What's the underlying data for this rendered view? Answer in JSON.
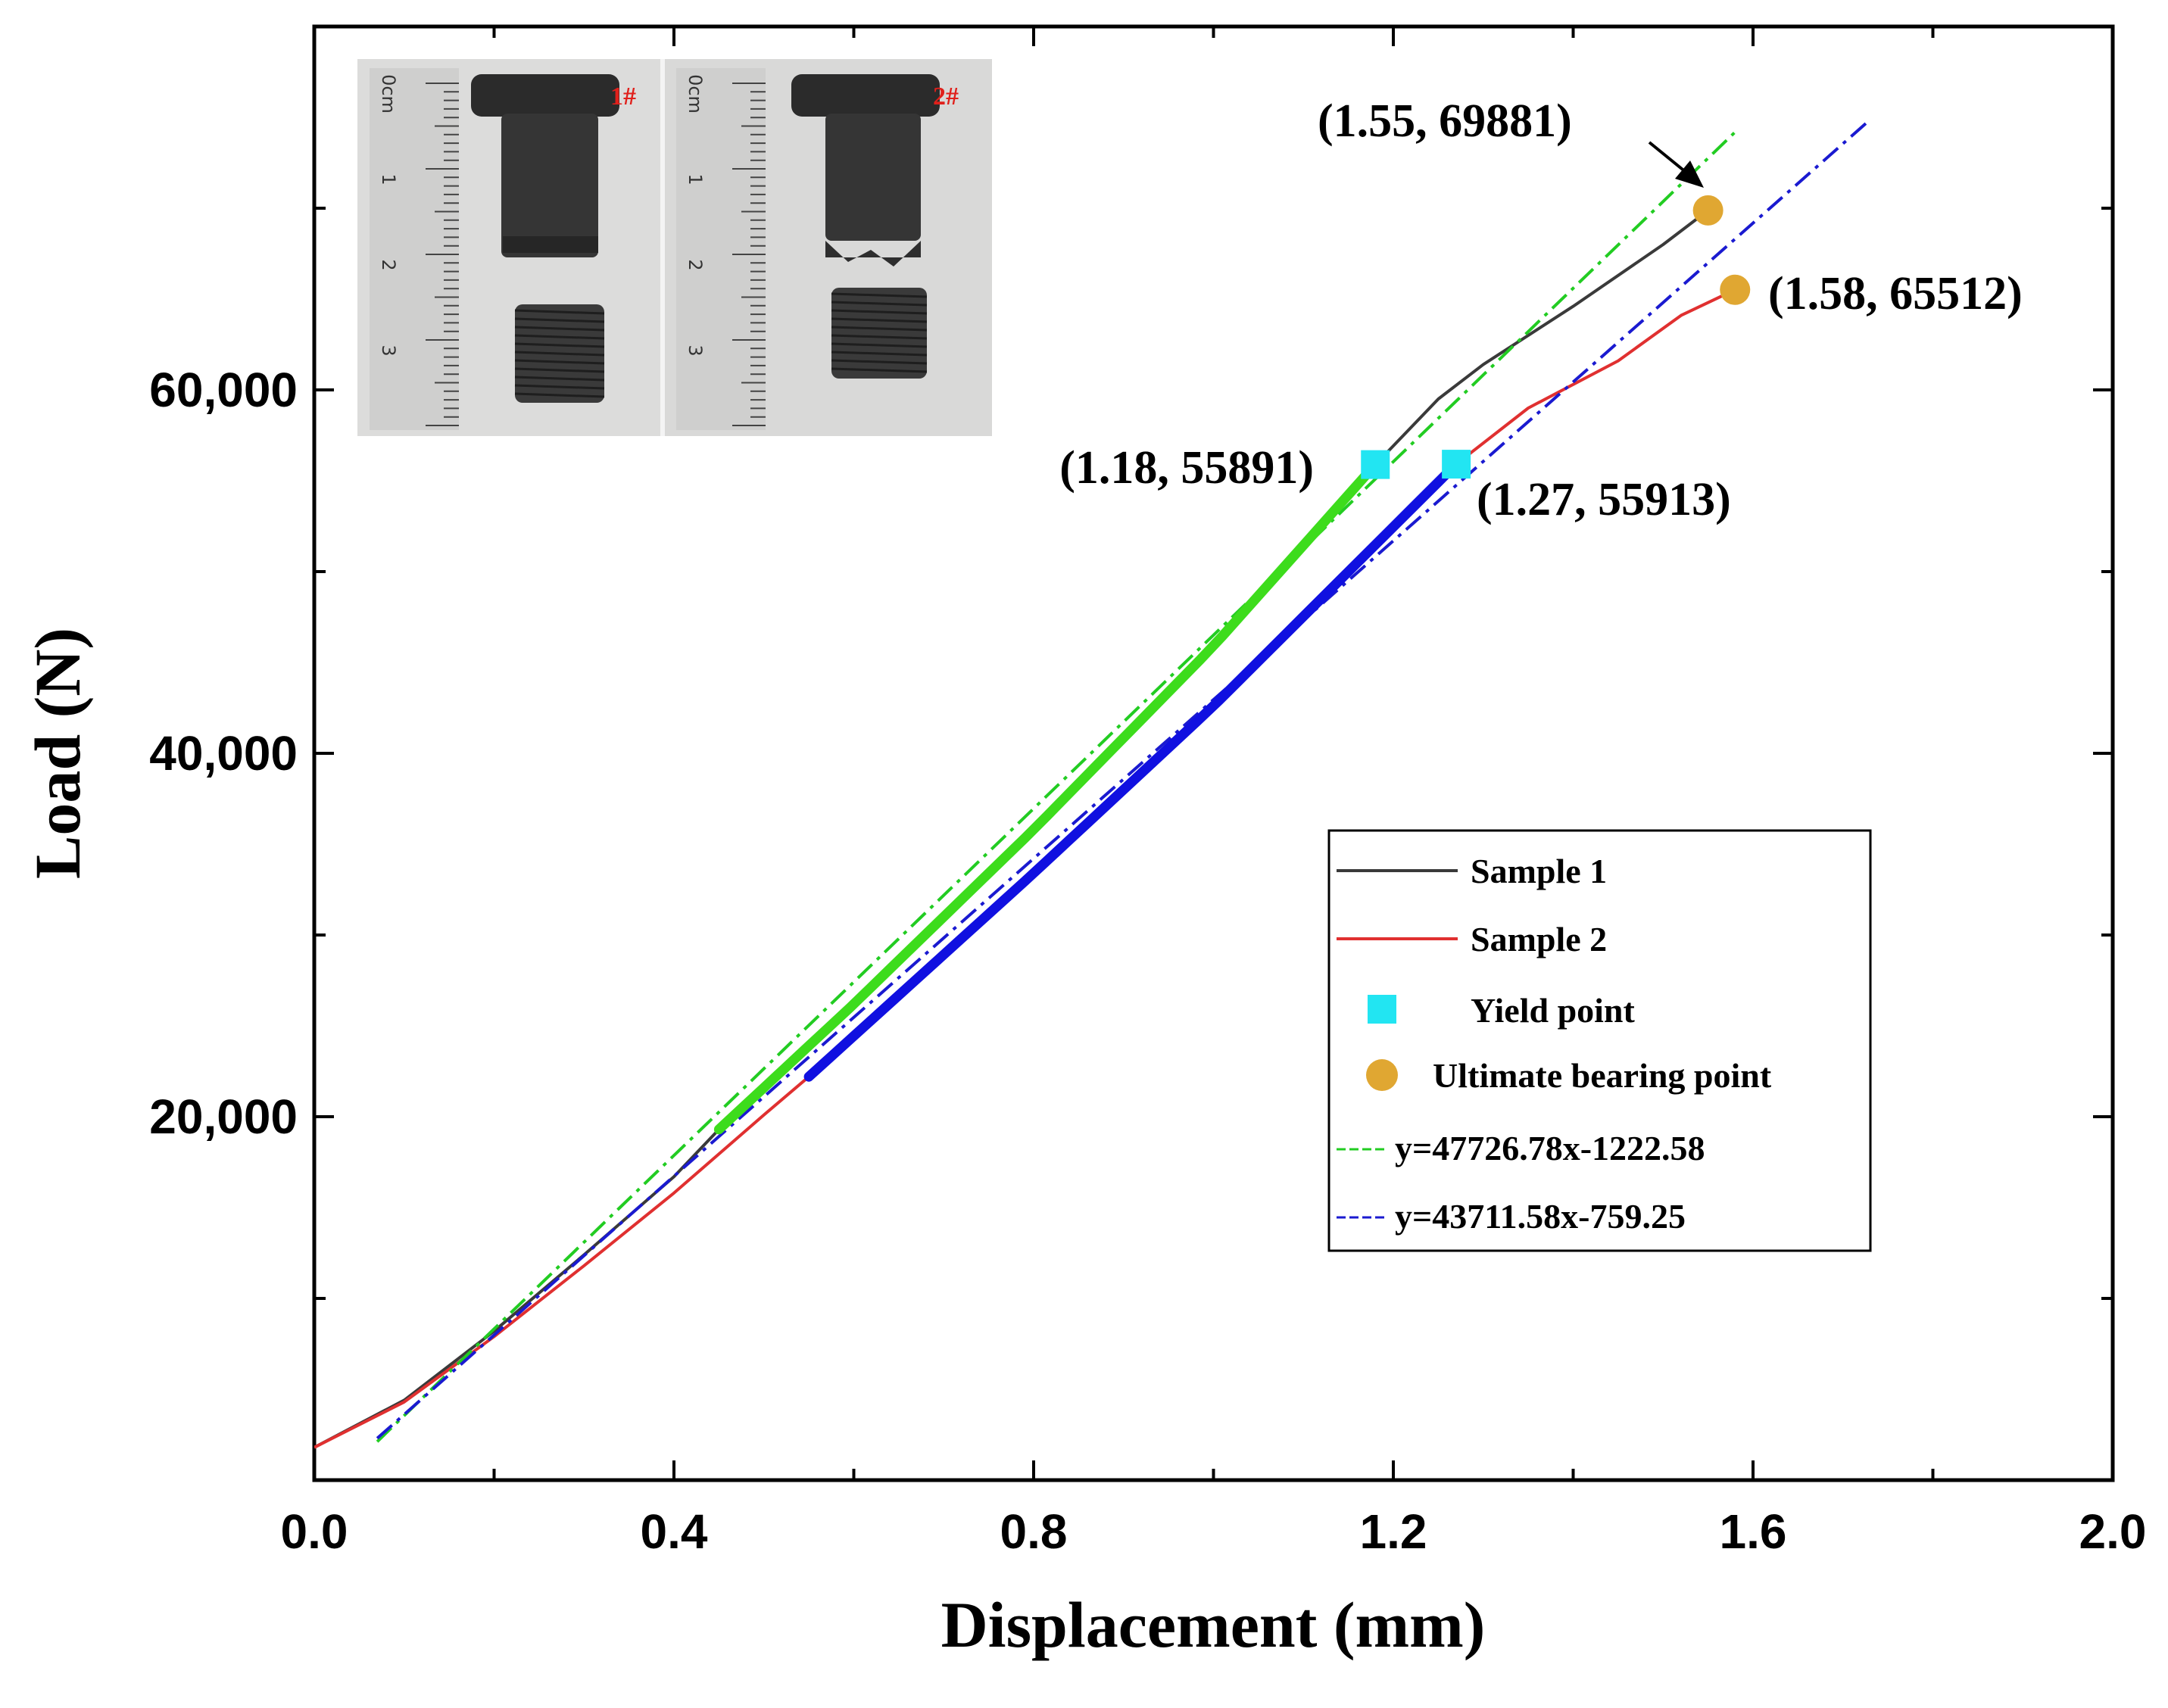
{
  "chart_data": {
    "type": "line",
    "xlabel": "Displacement (mm)",
    "ylabel": "Load (N)",
    "xlim": [
      0.0,
      2.0
    ],
    "ylim": [
      0,
      80000
    ],
    "x_ticks": [
      {
        "value": 0.0,
        "label": "0.0"
      },
      {
        "value": 0.4,
        "label": "0.4"
      },
      {
        "value": 0.8,
        "label": "0.8"
      },
      {
        "value": 1.2,
        "label": "1.2"
      },
      {
        "value": 1.6,
        "label": "1.6"
      },
      {
        "value": 2.0,
        "label": "2.0"
      }
    ],
    "x_minor_ticks": [
      0.2,
      0.6,
      1.0,
      1.4,
      1.8
    ],
    "y_ticks": [
      {
        "value": 20000,
        "label": "20,000"
      },
      {
        "value": 40000,
        "label": "40,000"
      },
      {
        "value": 60000,
        "label": "60,000"
      }
    ],
    "y_minor_ticks": [
      10000,
      30000,
      50000,
      70000
    ],
    "grid": false,
    "legend_position": "lower-right",
    "series": [
      {
        "name": "Sample 1",
        "color": "#3a3a3a",
        "style": "solid",
        "points": [
          [
            0,
            1800
          ],
          [
            0.1,
            4400
          ],
          [
            0.2,
            8200
          ],
          [
            0.3,
            12400
          ],
          [
            0.4,
            16700
          ],
          [
            0.45,
            19300
          ],
          [
            0.6,
            26200
          ],
          [
            0.8,
            35800
          ],
          [
            1.0,
            45900
          ],
          [
            1.18,
            55891
          ],
          [
            1.25,
            59500
          ],
          [
            1.3,
            61400
          ],
          [
            1.4,
            64600
          ],
          [
            1.5,
            68000
          ],
          [
            1.55,
            69881
          ]
        ]
      },
      {
        "name": "Sample 2",
        "color": "#e03030",
        "style": "solid",
        "points": [
          [
            0,
            1800
          ],
          [
            0.1,
            4300
          ],
          [
            0.2,
            7900
          ],
          [
            0.3,
            11800
          ],
          [
            0.4,
            15800
          ],
          [
            0.5,
            20100
          ],
          [
            0.55,
            22200
          ],
          [
            0.8,
            33400
          ],
          [
            1.0,
            42600
          ],
          [
            1.27,
            55913
          ],
          [
            1.35,
            59000
          ],
          [
            1.45,
            61600
          ],
          [
            1.52,
            64100
          ],
          [
            1.58,
            65512
          ]
        ]
      },
      {
        "name": "y=47726.78x-1222.58",
        "color": "#22cc22",
        "style": "dash-dot",
        "fit": {
          "slope": 47726.78,
          "intercept": -1222.58
        },
        "x_range": [
          0.07,
          1.58
        ]
      },
      {
        "name": "y=43711.58x-759.25",
        "color": "#1a1ad0",
        "style": "dash-dot",
        "fit": {
          "slope": 43711.58,
          "intercept": -759.25
        },
        "x_range": [
          0.07,
          1.73
        ]
      }
    ],
    "highlight_segments": [
      {
        "series": "Sample 1",
        "color": "#3ddc1c",
        "x_range": [
          0.45,
          1.18
        ]
      },
      {
        "series": "Sample 2",
        "color": "#1010e0",
        "x_range": [
          0.55,
          1.27
        ]
      }
    ],
    "markers": [
      {
        "type": "Yield point",
        "shape": "square",
        "color": "#22e5f2",
        "x": 1.18,
        "y": 55891,
        "label": "(1.18, 55891)"
      },
      {
        "type": "Yield point",
        "shape": "square",
        "color": "#22e5f2",
        "x": 1.27,
        "y": 55913,
        "label": "(1.27, 55913)"
      },
      {
        "type": "Ultimate bearing point",
        "shape": "circle",
        "color": "#e0a732",
        "x": 1.55,
        "y": 69881,
        "label": "(1.55, 69881)"
      },
      {
        "type": "Ultimate bearing point",
        "shape": "circle",
        "color": "#e0a732",
        "x": 1.58,
        "y": 65512,
        "label": "(1.58, 65512)"
      }
    ],
    "legend": [
      {
        "label": "Sample 1",
        "kind": "line",
        "color": "#3a3a3a"
      },
      {
        "label": "Sample 2",
        "kind": "line",
        "color": "#e03030"
      },
      {
        "label": "Yield point",
        "kind": "square",
        "color": "#22e5f2"
      },
      {
        "label": "Ultimate bearing point",
        "kind": "circle",
        "color": "#e0a732"
      },
      {
        "label": "y=47726.78x-1222.58",
        "kind": "dash",
        "color": "#22cc22"
      },
      {
        "label": "y=43711.58x-759.25",
        "kind": "dash",
        "color": "#1a1ad0"
      }
    ],
    "inset_photo": {
      "tags": [
        "1#",
        "2#"
      ],
      "ruler_labels": [
        "0cm",
        "1",
        "2",
        "3"
      ]
    }
  }
}
